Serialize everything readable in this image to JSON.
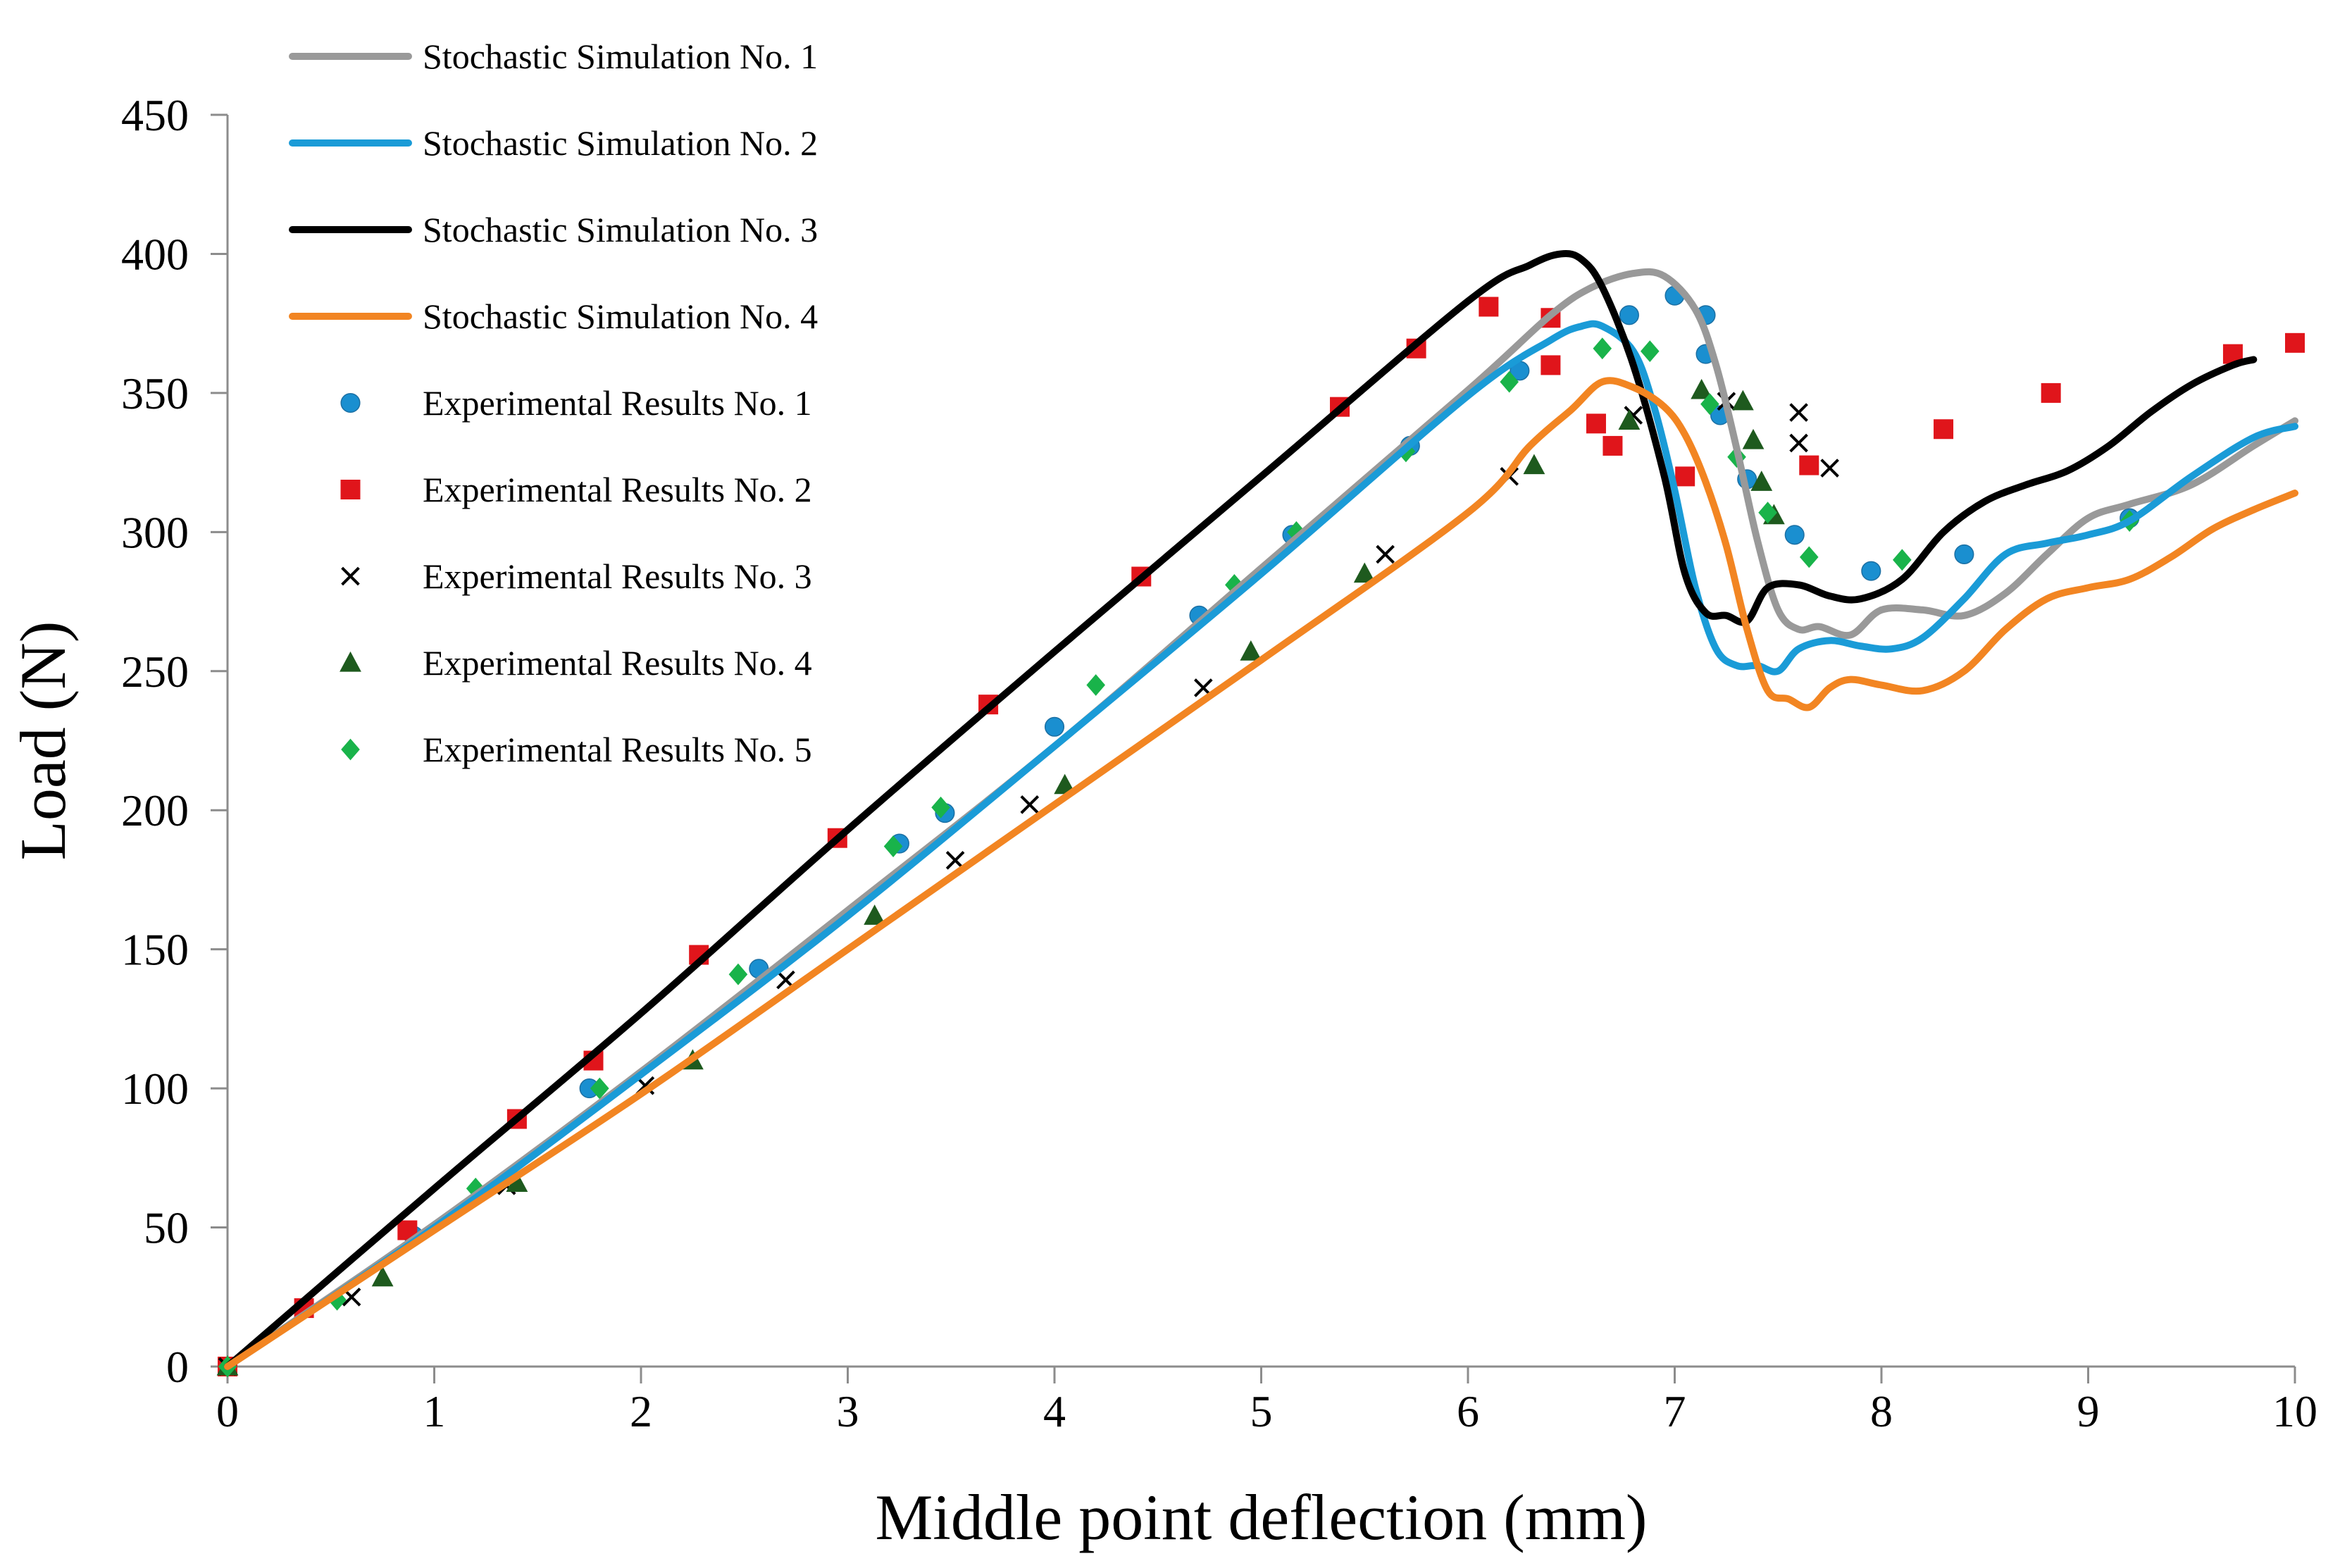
{
  "chart_data": {
    "type": "line",
    "title": "",
    "xlabel": "Middle point deflection (mm)",
    "ylabel": "Load (N)",
    "xlim": [
      0,
      10
    ],
    "ylim": [
      0,
      450
    ],
    "xticks": [
      0,
      1,
      2,
      3,
      4,
      5,
      6,
      7,
      8,
      9,
      10
    ],
    "yticks": [
      0,
      50,
      100,
      150,
      200,
      250,
      300,
      350,
      400,
      450
    ],
    "grid": false,
    "legend_position": "top-left",
    "series": [
      {
        "name": "Stochastic Simulation No. 1",
        "kind": "line",
        "color": "#999999",
        "points": [
          [
            0,
            0
          ],
          [
            1,
            51
          ],
          [
            2,
            106
          ],
          [
            3,
            164
          ],
          [
            4,
            223
          ],
          [
            5,
            287
          ],
          [
            6,
            351
          ],
          [
            6.4,
            378
          ],
          [
            6.6,
            388
          ],
          [
            6.8,
            393
          ],
          [
            6.95,
            392
          ],
          [
            7.1,
            380
          ],
          [
            7.2,
            360
          ],
          [
            7.3,
            330
          ],
          [
            7.4,
            297
          ],
          [
            7.5,
            272
          ],
          [
            7.6,
            265
          ],
          [
            7.7,
            266
          ],
          [
            7.85,
            263
          ],
          [
            8.0,
            272
          ],
          [
            8.2,
            272
          ],
          [
            8.4,
            270
          ],
          [
            8.6,
            278
          ],
          [
            8.8,
            292
          ],
          [
            9.0,
            305
          ],
          [
            9.2,
            310
          ],
          [
            9.5,
            317
          ],
          [
            9.8,
            331
          ],
          [
            10,
            340
          ]
        ]
      },
      {
        "name": "Stochastic Simulation No. 2",
        "kind": "line",
        "color": "#1a9bd7",
        "points": [
          [
            0,
            0
          ],
          [
            1,
            50
          ],
          [
            2,
            105
          ],
          [
            3,
            162
          ],
          [
            4,
            223
          ],
          [
            5,
            285
          ],
          [
            6,
            349
          ],
          [
            6.4,
            369
          ],
          [
            6.55,
            374
          ],
          [
            6.65,
            374
          ],
          [
            6.8,
            365
          ],
          [
            6.9,
            345
          ],
          [
            7.0,
            315
          ],
          [
            7.1,
            280
          ],
          [
            7.2,
            258
          ],
          [
            7.3,
            252
          ],
          [
            7.4,
            252
          ],
          [
            7.5,
            250
          ],
          [
            7.6,
            258
          ],
          [
            7.75,
            261
          ],
          [
            7.9,
            259
          ],
          [
            8.05,
            258
          ],
          [
            8.2,
            262
          ],
          [
            8.4,
            276
          ],
          [
            8.6,
            292
          ],
          [
            8.8,
            296
          ],
          [
            9.0,
            299
          ],
          [
            9.2,
            304
          ],
          [
            9.5,
            320
          ],
          [
            9.8,
            334
          ],
          [
            10,
            338
          ]
        ]
      },
      {
        "name": "Stochastic Simulation No. 3",
        "kind": "line",
        "color": "#000000",
        "points": [
          [
            0,
            0
          ],
          [
            1,
            64
          ],
          [
            2,
            127
          ],
          [
            3,
            193
          ],
          [
            4,
            257
          ],
          [
            5,
            320
          ],
          [
            6,
            383
          ],
          [
            6.3,
            396
          ],
          [
            6.45,
            400
          ],
          [
            6.55,
            398
          ],
          [
            6.65,
            388
          ],
          [
            6.8,
            360
          ],
          [
            6.95,
            320
          ],
          [
            7.05,
            285
          ],
          [
            7.15,
            271
          ],
          [
            7.25,
            270
          ],
          [
            7.35,
            268
          ],
          [
            7.45,
            280
          ],
          [
            7.6,
            281
          ],
          [
            7.75,
            277
          ],
          [
            7.9,
            276
          ],
          [
            8.1,
            283
          ],
          [
            8.3,
            300
          ],
          [
            8.5,
            311
          ],
          [
            8.7,
            317
          ],
          [
            8.9,
            322
          ],
          [
            9.1,
            331
          ],
          [
            9.3,
            343
          ],
          [
            9.5,
            353
          ],
          [
            9.7,
            360
          ],
          [
            9.8,
            362
          ]
        ]
      },
      {
        "name": "Stochastic Simulation No. 4",
        "kind": "line",
        "color": "#f28522",
        "points": [
          [
            0,
            0
          ],
          [
            1,
            49
          ],
          [
            2,
            98
          ],
          [
            3,
            150
          ],
          [
            4,
            202
          ],
          [
            5,
            254
          ],
          [
            6,
            307
          ],
          [
            6.3,
            331
          ],
          [
            6.5,
            344
          ],
          [
            6.65,
            354
          ],
          [
            6.8,
            352
          ],
          [
            6.95,
            345
          ],
          [
            7.05,
            335
          ],
          [
            7.15,
            318
          ],
          [
            7.25,
            295
          ],
          [
            7.35,
            265
          ],
          [
            7.45,
            243
          ],
          [
            7.55,
            240
          ],
          [
            7.65,
            237
          ],
          [
            7.75,
            244
          ],
          [
            7.85,
            247
          ],
          [
            8.0,
            245
          ],
          [
            8.2,
            243
          ],
          [
            8.4,
            250
          ],
          [
            8.6,
            265
          ],
          [
            8.8,
            276
          ],
          [
            9.0,
            280
          ],
          [
            9.2,
            283
          ],
          [
            9.4,
            291
          ],
          [
            9.6,
            301
          ],
          [
            9.8,
            308
          ],
          [
            10,
            314
          ]
        ]
      },
      {
        "name": "Experimental Results No. 1",
        "kind": "scatter",
        "marker": "circle",
        "color": "#1a8fd0",
        "points": [
          [
            0,
            0
          ],
          [
            0.9,
            47
          ],
          [
            1.75,
            100
          ],
          [
            2.57,
            143
          ],
          [
            3.25,
            188
          ],
          [
            3.47,
            199
          ],
          [
            4.0,
            230
          ],
          [
            4.7,
            270
          ],
          [
            5.15,
            299
          ],
          [
            5.72,
            331
          ],
          [
            6.25,
            358
          ],
          [
            6.78,
            378
          ],
          [
            7.0,
            385
          ],
          [
            7.15,
            378
          ],
          [
            7.15,
            364
          ],
          [
            7.22,
            342
          ],
          [
            7.35,
            319
          ],
          [
            7.58,
            299
          ],
          [
            7.95,
            286
          ],
          [
            8.4,
            292
          ],
          [
            9.2,
            305
          ]
        ]
      },
      {
        "name": "Experimental Results No. 2",
        "kind": "scatter",
        "marker": "square",
        "color": "#e0151b",
        "points": [
          [
            0,
            0
          ],
          [
            0.37,
            21
          ],
          [
            0.87,
            49
          ],
          [
            1.77,
            110
          ],
          [
            1.4,
            89
          ],
          [
            2.28,
            148
          ],
          [
            2.95,
            190
          ],
          [
            3.68,
            238
          ],
          [
            4.42,
            284
          ],
          [
            5.38,
            345
          ],
          [
            5.75,
            366
          ],
          [
            6.1,
            381
          ],
          [
            6.4,
            377
          ],
          [
            6.4,
            360
          ],
          [
            6.62,
            339
          ],
          [
            6.7,
            331
          ],
          [
            7.05,
            320
          ],
          [
            7.65,
            324
          ],
          [
            8.3,
            337
          ],
          [
            8.82,
            350
          ],
          [
            9.7,
            364
          ],
          [
            10,
            368
          ]
        ]
      },
      {
        "name": "Experimental Results No. 3",
        "kind": "scatter",
        "marker": "x",
        "color": "#000000",
        "points": [
          [
            0,
            0
          ],
          [
            0.6,
            25
          ],
          [
            1.35,
            65
          ],
          [
            2.02,
            101
          ],
          [
            2.7,
            139
          ],
          [
            3.52,
            182
          ],
          [
            3.88,
            202
          ],
          [
            4.72,
            244
          ],
          [
            5.6,
            292
          ],
          [
            6.2,
            320
          ],
          [
            6.8,
            342
          ],
          [
            7.25,
            347
          ],
          [
            7.6,
            343
          ],
          [
            7.6,
            332
          ],
          [
            7.75,
            323
          ]
        ]
      },
      {
        "name": "Experimental Results No. 4",
        "kind": "scatter",
        "marker": "triangle",
        "color": "#1e5a1e",
        "points": [
          [
            0,
            0
          ],
          [
            0.75,
            32
          ],
          [
            1.4,
            66
          ],
          [
            2.25,
            110
          ],
          [
            3.13,
            162
          ],
          [
            4.05,
            209
          ],
          [
            4.95,
            257
          ],
          [
            5.5,
            285
          ],
          [
            6.32,
            324
          ],
          [
            6.78,
            340
          ],
          [
            7.13,
            351
          ],
          [
            7.33,
            347
          ],
          [
            7.38,
            333
          ],
          [
            7.42,
            318
          ],
          [
            7.48,
            306
          ]
        ]
      },
      {
        "name": "Experimental Results No. 5",
        "kind": "scatter",
        "marker": "diamond",
        "color": "#19b34a",
        "points": [
          [
            0,
            0
          ],
          [
            0.53,
            24
          ],
          [
            1.2,
            64
          ],
          [
            1.8,
            100
          ],
          [
            2.47,
            141
          ],
          [
            3.22,
            187
          ],
          [
            3.45,
            201
          ],
          [
            4.2,
            245
          ],
          [
            4.87,
            281
          ],
          [
            5.17,
            300
          ],
          [
            5.7,
            329
          ],
          [
            6.2,
            354
          ],
          [
            6.65,
            366
          ],
          [
            6.88,
            365
          ],
          [
            7.17,
            346
          ],
          [
            7.3,
            327
          ],
          [
            7.45,
            307
          ],
          [
            7.65,
            291
          ],
          [
            8.1,
            290
          ],
          [
            9.2,
            304
          ]
        ]
      }
    ]
  }
}
